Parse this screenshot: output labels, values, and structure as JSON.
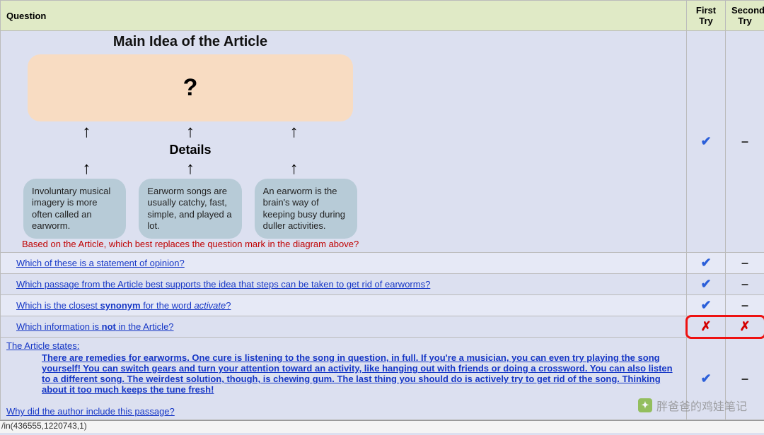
{
  "header": {
    "question_col": "Question",
    "first_try_col": "First Try",
    "second_try_col": "Second Try"
  },
  "diagram": {
    "title": "Main Idea of the Article",
    "main_box": "?",
    "section_label": "Details",
    "details": [
      "Involuntary musical imagery is more often called an earworm.",
      "Earworm songs are usually catchy, fast, simple, and played a lot.",
      "An earworm is the brain's way of keeping busy during duller activities."
    ],
    "prompt": "Based on the Article, which best replaces the question mark in the diagram above?",
    "colors": {
      "main_box_bg": "#f8dcc2",
      "detail_box_bg": "#b7cbd7",
      "page_bg": "#dce0f0",
      "prompt_color": "#c00000"
    }
  },
  "rows": [
    {
      "html": "Which of these is a statement of opinion?",
      "first": "check",
      "second": "dash"
    },
    {
      "html": "Which passage from the Article best supports the idea that steps can be taken to get rid of earworms?",
      "first": "check",
      "second": "dash"
    },
    {
      "html": "Which is the closest <b>synonym</b> for the word <i>activate</i>?",
      "first": "check",
      "second": "dash"
    },
    {
      "html": "Which information is <b>not</b> in the Article?",
      "first": "cross",
      "second": "cross",
      "highlight": true
    }
  ],
  "diagram_result": {
    "first": "check",
    "second": "dash"
  },
  "article_states": {
    "lead": "The Article states:",
    "passage": "There are remedies for earworms. One cure is listening to the song in question, in full. If you're a musician, you can even try playing the song yourself! You can switch gears and turn your attention toward an activity, like hanging out with friends or doing a crossword. You can also listen to a different song. The weirdest solution, though, is chewing gum. The last thing you should do is actively try to get rid of the song. Thinking about it too much keeps the tune fresh!",
    "followup": "Why did the author include this passage?",
    "first": "check",
    "second": "dash"
  },
  "statusbar": "/in(436555,1220743,1)",
  "watermark": "胖爸爸的鸡娃笔记",
  "marks": {
    "check": "✔",
    "dash": "–",
    "cross": "✗"
  }
}
